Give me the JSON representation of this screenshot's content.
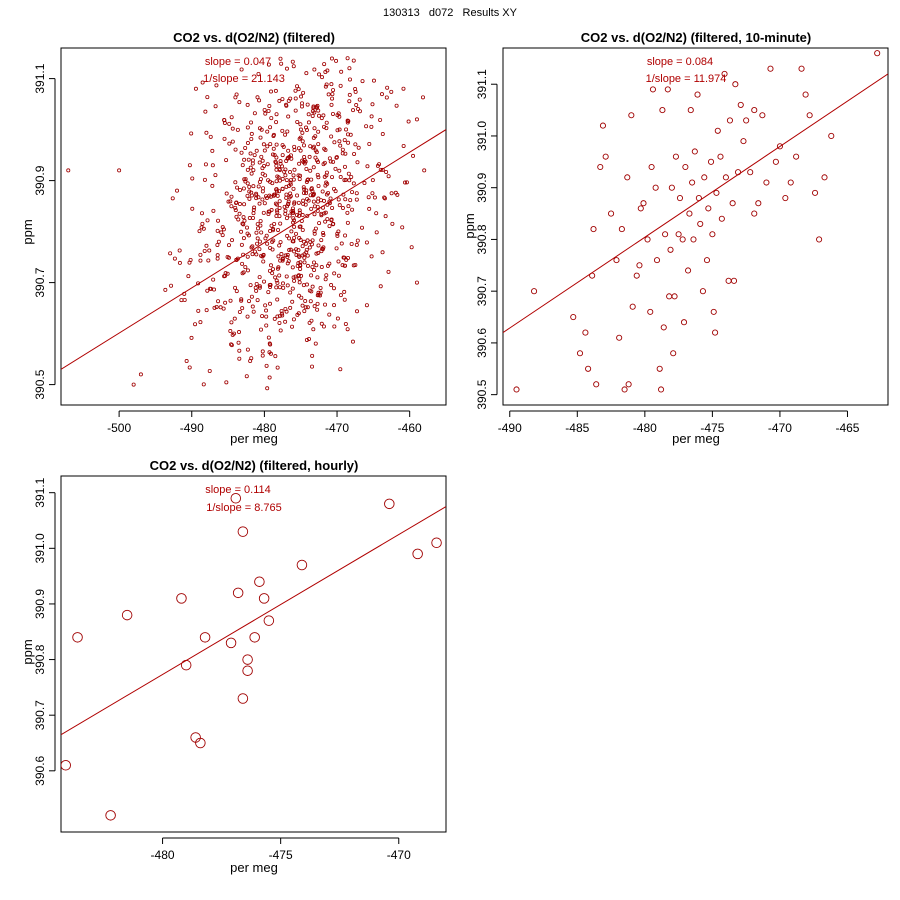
{
  "page_title": "130313   d072   Results XY",
  "colors": {
    "points": "#a00000",
    "fit_line": "#b00000",
    "annotation": "#b00000",
    "axes": "#000000"
  },
  "chart_data": [
    {
      "type": "scatter",
      "title": "CO2 vs. d(O2/N2) (filtered)",
      "xlabel": "per meg",
      "ylabel": "ppm",
      "xlim": [
        -508,
        -455
      ],
      "ylim": [
        390.46,
        391.16
      ],
      "xticks": [
        -500,
        -490,
        -480,
        -470,
        -460
      ],
      "yticks": [
        390.5,
        390.7,
        390.9,
        391.1
      ],
      "annotations": [
        "slope = 0.047",
        "1/slope = 21.143"
      ],
      "fit": {
        "slope": 0.047,
        "x0": -508,
        "y0": 390.53,
        "x1": -455,
        "y1": 391.0
      },
      "point_cloud": {
        "count": 900,
        "x_center": -476.5,
        "x_spread": 6.5,
        "y_center": 390.85,
        "y_spread": 0.15,
        "x_range": [
          -494,
          -457
        ],
        "y_range": [
          390.49,
          391.14
        ],
        "outliers": [
          [
            -507,
            390.92
          ],
          [
            -500,
            390.92
          ],
          [
            -497,
            390.52
          ],
          [
            -498,
            390.5
          ],
          [
            -458,
            390.92
          ],
          [
            -459,
            391.02
          ],
          [
            -459,
            390.7
          ]
        ]
      }
    },
    {
      "type": "scatter",
      "title": "CO2 vs. d(O2/N2) (filtered, 10-minute)",
      "xlabel": "per meg",
      "ylabel": "ppm",
      "xlim": [
        -490.5,
        -462
      ],
      "ylim": [
        390.48,
        391.17
      ],
      "xticks": [
        -490,
        -485,
        -480,
        -475,
        -470,
        -465
      ],
      "yticks": [
        390.5,
        390.6,
        390.7,
        390.8,
        390.9,
        391.0,
        391.1
      ],
      "annotations": [
        "slope = 0.084",
        "1/slope = 11.974"
      ],
      "fit": {
        "slope": 0.084,
        "x0": -490.5,
        "y0": 390.62,
        "x1": -462,
        "y1": 391.12
      },
      "points": [
        [
          -489.5,
          390.51
        ],
        [
          -488.2,
          390.7
        ],
        [
          -485.3,
          390.65
        ],
        [
          -484.8,
          390.58
        ],
        [
          -484.4,
          390.62
        ],
        [
          -484.2,
          390.55
        ],
        [
          -483.9,
          390.73
        ],
        [
          -483.8,
          390.82
        ],
        [
          -483.6,
          390.52
        ],
        [
          -483.3,
          390.94
        ],
        [
          -483.1,
          391.02
        ],
        [
          -482.9,
          390.96
        ],
        [
          -482.5,
          390.85
        ],
        [
          -482.1,
          390.76
        ],
        [
          -481.9,
          390.61
        ],
        [
          -481.7,
          390.82
        ],
        [
          -481.5,
          390.51
        ],
        [
          -481.3,
          390.92
        ],
        [
          -481.2,
          390.52
        ],
        [
          -481.0,
          391.04
        ],
        [
          -480.6,
          390.73
        ],
        [
          -480.4,
          390.75
        ],
        [
          -480.3,
          390.86
        ],
        [
          -480.1,
          390.87
        ],
        [
          -479.8,
          390.8
        ],
        [
          -479.6,
          390.66
        ],
        [
          -479.5,
          390.94
        ],
        [
          -479.4,
          391.09
        ],
        [
          -479.2,
          390.9
        ],
        [
          -479.1,
          390.76
        ],
        [
          -478.9,
          390.55
        ],
        [
          -478.8,
          390.51
        ],
        [
          -478.6,
          390.63
        ],
        [
          -478.5,
          390.81
        ],
        [
          -478.3,
          391.09
        ],
        [
          -478.2,
          390.69
        ],
        [
          -478.1,
          390.78
        ],
        [
          -478.0,
          390.9
        ],
        [
          -477.8,
          390.69
        ],
        [
          -477.7,
          390.96
        ],
        [
          -477.5,
          390.81
        ],
        [
          -477.4,
          390.88
        ],
        [
          -477.2,
          390.8
        ],
        [
          -477.1,
          390.64
        ],
        [
          -477.0,
          390.94
        ],
        [
          -476.8,
          390.74
        ],
        [
          -476.7,
          390.85
        ],
        [
          -476.5,
          390.91
        ],
        [
          -476.4,
          390.8
        ],
        [
          -476.3,
          390.97
        ],
        [
          -476.1,
          391.08
        ],
        [
          -476.0,
          390.88
        ],
        [
          -475.9,
          390.83
        ],
        [
          -475.7,
          390.7
        ],
        [
          -475.6,
          390.92
        ],
        [
          -475.4,
          390.76
        ],
        [
          -475.3,
          390.86
        ],
        [
          -475.1,
          390.95
        ],
        [
          -475.0,
          390.81
        ],
        [
          -474.9,
          390.66
        ],
        [
          -474.7,
          390.89
        ],
        [
          -474.6,
          391.01
        ],
        [
          -474.4,
          390.96
        ],
        [
          -474.3,
          390.84
        ],
        [
          -474.1,
          391.12
        ],
        [
          -474.0,
          390.92
        ],
        [
          -473.8,
          390.72
        ],
        [
          -473.7,
          391.03
        ],
        [
          -473.5,
          390.87
        ],
        [
          -473.3,
          391.1
        ],
        [
          -473.1,
          390.93
        ],
        [
          -472.9,
          391.06
        ],
        [
          -472.7,
          390.99
        ],
        [
          -472.5,
          391.03
        ],
        [
          -472.2,
          390.93
        ],
        [
          -471.9,
          391.05
        ],
        [
          -471.6,
          390.87
        ],
        [
          -471.3,
          391.04
        ],
        [
          -471.0,
          390.91
        ],
        [
          -470.7,
          391.13
        ],
        [
          -470.3,
          390.95
        ],
        [
          -470.0,
          390.98
        ],
        [
          -469.6,
          390.88
        ],
        [
          -469.2,
          390.91
        ],
        [
          -468.8,
          390.96
        ],
        [
          -468.4,
          391.13
        ],
        [
          -468.1,
          391.08
        ],
        [
          -467.8,
          391.04
        ],
        [
          -467.4,
          390.89
        ],
        [
          -467.1,
          390.8
        ],
        [
          -466.7,
          390.92
        ],
        [
          -466.2,
          391.0
        ],
        [
          -462.8,
          391.16
        ],
        [
          -476.6,
          391.05
        ],
        [
          -478.7,
          391.05
        ],
        [
          -480.9,
          390.67
        ],
        [
          -474.8,
          390.62
        ],
        [
          -477.9,
          390.58
        ],
        [
          -471.9,
          390.85
        ],
        [
          -473.4,
          390.72
        ]
      ]
    },
    {
      "type": "scatter",
      "title": "CO2 vs. d(O2/N2) (filtered, hourly)",
      "xlabel": "per meg",
      "ylabel": "ppm",
      "xlim": [
        -484.3,
        -468
      ],
      "ylim": [
        390.49,
        391.13
      ],
      "xticks": [
        -480,
        -475,
        -470
      ],
      "yticks": [
        390.6,
        390.7,
        390.8,
        390.9,
        391.0,
        391.1
      ],
      "annotations": [
        "slope = 0.114",
        "1/slope = 8.765"
      ],
      "fit": {
        "slope": 0.114,
        "x0": -484.3,
        "y0": 390.665,
        "x1": -468,
        "y1": 391.075
      },
      "points": [
        [
          -484.1,
          390.61
        ],
        [
          -483.6,
          390.84
        ],
        [
          -482.2,
          390.52
        ],
        [
          -481.5,
          390.88
        ],
        [
          -479.2,
          390.91
        ],
        [
          -479.0,
          390.79
        ],
        [
          -478.6,
          390.66
        ],
        [
          -478.4,
          390.65
        ],
        [
          -478.2,
          390.84
        ],
        [
          -477.1,
          390.83
        ],
        [
          -476.8,
          390.92
        ],
        [
          -476.6,
          390.73
        ],
        [
          -476.6,
          391.03
        ],
        [
          -476.4,
          390.78
        ],
        [
          -476.4,
          390.8
        ],
        [
          -476.1,
          390.84
        ],
        [
          -475.9,
          390.94
        ],
        [
          -475.7,
          390.91
        ],
        [
          -475.5,
          390.87
        ],
        [
          -474.1,
          390.97
        ],
        [
          -470.4,
          391.08
        ],
        [
          -469.2,
          390.99
        ],
        [
          -468.4,
          391.01
        ],
        [
          -476.9,
          391.09
        ]
      ]
    }
  ]
}
